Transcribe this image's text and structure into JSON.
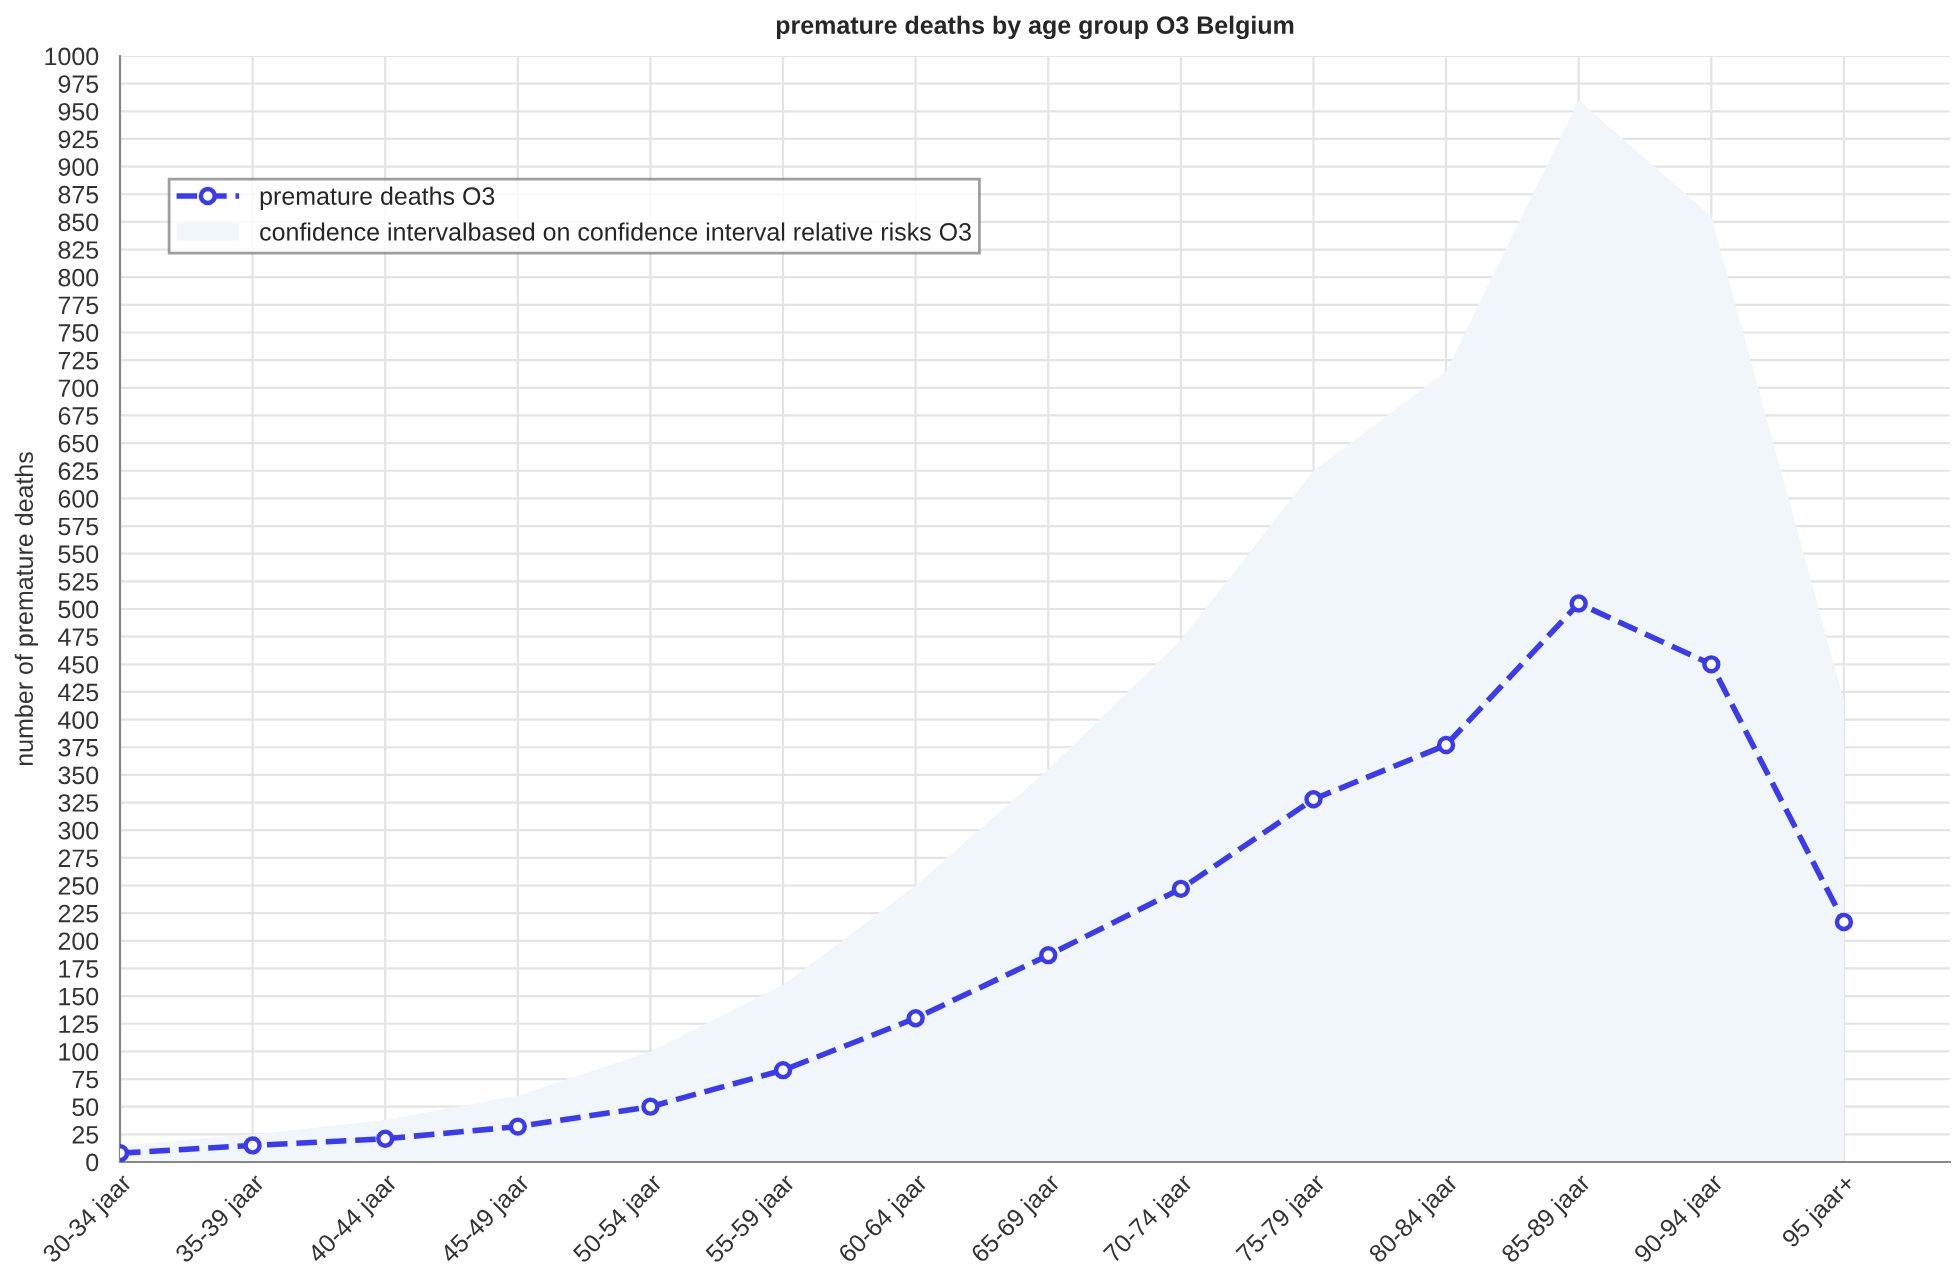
{
  "chart_data": {
    "type": "line",
    "title": "premature deaths by age group O3 Belgium",
    "ylabel": "number of premature deaths",
    "categories": [
      "30-34 jaar",
      "35-39 jaar",
      "40-44 jaar",
      "45-49 jaar",
      "50-54 jaar",
      "55-59 jaar",
      "60-64 jaar",
      "65-69 jaar",
      "70-74 jaar",
      "75-79 jaar",
      "80-84 jaar",
      "85-89 jaar",
      "90-94 jaar",
      "95 jaar+"
    ],
    "series": [
      {
        "name": "premature deaths O3",
        "color": "#3a3af0",
        "marker": "circle",
        "line_style": "dashed",
        "values": [
          8,
          15,
          21,
          32,
          50,
          83,
          130,
          187,
          247,
          328,
          377,
          505,
          450,
          217
        ]
      },
      {
        "name": "confidence intervalbased on confidence interval relative risks O3",
        "type": "area",
        "color": "#f0f6fa",
        "values": [
          15,
          25,
          38,
          60,
          100,
          160,
          250,
          355,
          472,
          625,
          715,
          960,
          855,
          417
        ]
      }
    ],
    "ylim": [
      0,
      1000
    ],
    "yticks": [
      0,
      25,
      50,
      75,
      100,
      125,
      150,
      175,
      200,
      225,
      250,
      275,
      300,
      325,
      350,
      375,
      400,
      425,
      450,
      475,
      500,
      525,
      550,
      575,
      600,
      625,
      650,
      675,
      700,
      725,
      750,
      775,
      800,
      825,
      850,
      875,
      900,
      925,
      950,
      975,
      1000
    ],
    "grid": true,
    "legend": "top left"
  }
}
